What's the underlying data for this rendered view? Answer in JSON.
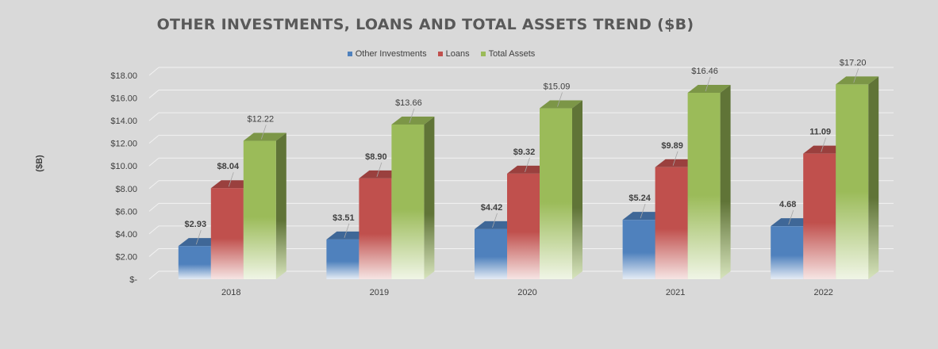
{
  "chart_data": {
    "type": "bar",
    "title": "OTHER INVESTMENTS, LOANS AND TOTAL ASSETS TREND ($B)",
    "ylabel": "($B)",
    "xlabel": "",
    "categories": [
      "2018",
      "2019",
      "2020",
      "2021",
      "2022"
    ],
    "ylim": [
      0,
      18
    ],
    "yticks": [
      0,
      2,
      4,
      6,
      8,
      10,
      12,
      14,
      16,
      18
    ],
    "ytick_labels": [
      "$-",
      "$2.00",
      "$4.00",
      "$6.00",
      "$8.00",
      "$10.00",
      "$12.00",
      "$14.00",
      "$16.00",
      "$18.00"
    ],
    "grid": true,
    "legend_position": "top-center",
    "style": "3d-clustered-column",
    "series": [
      {
        "name": "Other Investments",
        "color": "#4f81bd",
        "values": [
          2.93,
          3.51,
          4.42,
          5.24,
          4.68
        ],
        "labels": [
          "$2.93",
          "$3.51",
          "$4.42",
          "$5.24",
          "4.68"
        ]
      },
      {
        "name": "Loans",
        "color": "#c0504d",
        "values": [
          8.04,
          8.9,
          9.32,
          9.89,
          11.09
        ],
        "labels": [
          "$8.04",
          "$8.90",
          "$9.32",
          "$9.89",
          "11.09"
        ]
      },
      {
        "name": "Total Assets",
        "color": "#9bbb59",
        "values": [
          12.22,
          13.66,
          15.09,
          16.46,
          17.2
        ],
        "labels": [
          "$12.22",
          "$13.66",
          "$15.09",
          "$16.46",
          "$17.20"
        ]
      }
    ]
  }
}
